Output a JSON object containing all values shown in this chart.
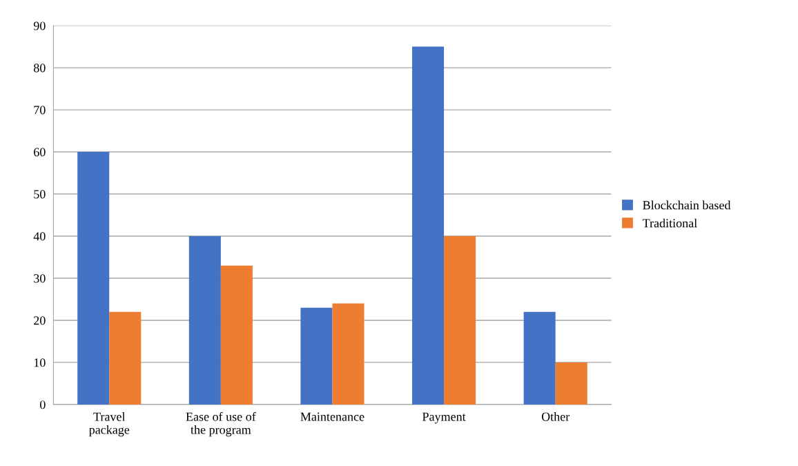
{
  "chart_data": {
    "type": "bar",
    "categories": [
      "Travel\npackage",
      "Ease of use of\nthe program",
      "Maintenance",
      "Payment",
      "Other"
    ],
    "series": [
      {
        "name": "Blockchain based",
        "color": "#4472c4",
        "values": [
          60,
          40,
          23,
          85,
          22
        ]
      },
      {
        "name": "Traditional",
        "color": "#ed7d31",
        "values": [
          22,
          33,
          24,
          40,
          10
        ]
      }
    ],
    "ylim": [
      0,
      90
    ],
    "yticks": [
      0,
      10,
      20,
      30,
      40,
      50,
      60,
      70,
      80,
      90
    ],
    "grid": "y",
    "legend": "right"
  }
}
